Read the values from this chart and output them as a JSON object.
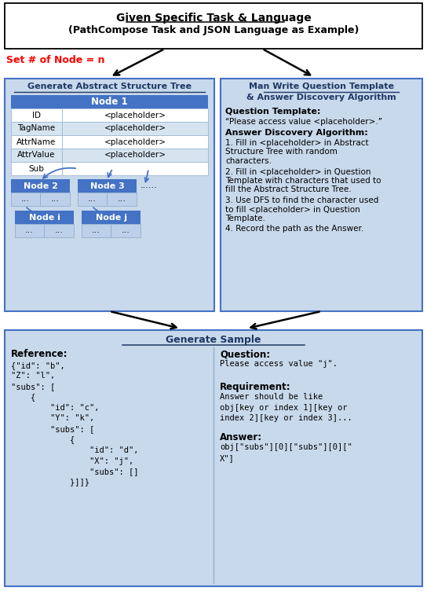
{
  "title_line1": "Given Specific Task & Language",
  "title_line2": "(PathCompose Task and JSON Language as Example)",
  "set_node_text": "Set # of Node = n",
  "left_box_title": "Generate Abstract Structure Tree",
  "left_box_bg": "#C8D9EC",
  "node_blue": "#4472C4",
  "node_light_blue": "#BDD0E9",
  "table_white": "#FFFFFF",
  "table_alt": "#D6E4F0",
  "node1_text": "Node 1",
  "node2_text": "Node 2",
  "node3_text": "Node 3",
  "nodei_text": "Node i",
  "nodej_text": "Node j",
  "table_rows": [
    [
      "ID",
      "<placeholder>"
    ],
    [
      "TagName",
      "<placeholder>"
    ],
    [
      "AttrName",
      "<placeholder>"
    ],
    [
      "AttrValue",
      "<placeholder>"
    ],
    [
      "Sub",
      ""
    ]
  ],
  "right_box_title_line1": "Man Write Question Template",
  "right_box_title_line2": "& Answer Discovery Algorithm",
  "right_box_bg": "#C8D9EC",
  "qt_label": "Question Template:",
  "qt_text": "“Please access value <placeholder>.”",
  "ada_label": "Answer Discovery Algorithm:",
  "ada_items": [
    "1. Fill in <placeholder> in Abstract\nStructure Tree with random\ncharacters.",
    "2. Fill in <placeholder> in Question\nTemplate with characters that used to\nfill the Abstract Structure Tree.",
    "3. Use DFS to find the character used\nto fill <placeholder> in Question\nTemplate.",
    "4. Record the path as the Answer."
  ],
  "bottom_box_title": "Generate Sample",
  "bottom_box_bg": "#C8D9EC",
  "ref_label": "Reference:",
  "ref_lines": [
    "{\"id\": \"b\",",
    "\"Z\": \"l\",",
    "\"subs\": [",
    "    {",
    "        \"id\": \"c\",",
    "        \"Y\": \"k\",",
    "        \"subs\": [",
    "            {",
    "                \"id\": \"d\",",
    "                \"X\": \"j\",",
    "                \"subs\": []",
    "            }]]}",
    "}"
  ],
  "q_label": "Question:",
  "q_text": "Please access value \"j\".",
  "req_label": "Requirement:",
  "req_lines": [
    "Answer should be like",
    "obj[key or index 1][key or",
    "index 2][key or index 3]..."
  ],
  "ans_label": "Answer:",
  "ans_lines": [
    "obj[\"subs\"][0][\"subs\"][0][\"",
    "X\"]"
  ],
  "border_blue": "#4472C4",
  "title_blue": "#1F3864",
  "text_black": "#000000",
  "red": "#FF0000"
}
